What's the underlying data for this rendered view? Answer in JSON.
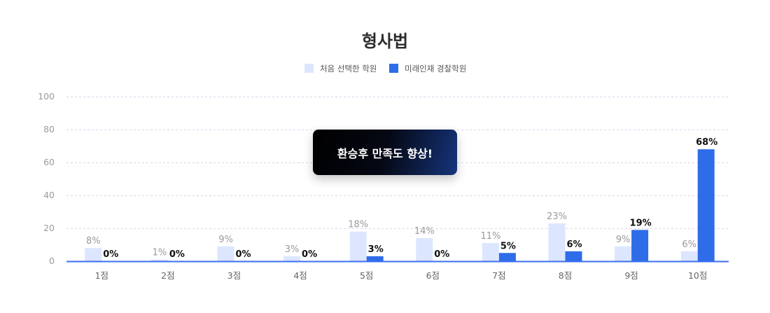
{
  "chart_data": {
    "type": "bar",
    "title": "형사법",
    "categories": [
      "1점",
      "2점",
      "3점",
      "4점",
      "5점",
      "6점",
      "7점",
      "8점",
      "9점",
      "10점"
    ],
    "series": [
      {
        "name": "처음 선택한 학원",
        "color": "#dce6ff",
        "values": [
          8,
          1,
          9,
          3,
          18,
          14,
          11,
          23,
          9,
          6
        ],
        "labels": [
          "8%",
          "1%",
          "9%",
          "3%",
          "18%",
          "14%",
          "11%",
          "23%",
          "9%",
          "6%"
        ]
      },
      {
        "name": "미래인재 경찰학원",
        "color": "#2f6de8",
        "values": [
          0,
          0,
          0,
          0,
          3,
          0,
          5,
          6,
          19,
          68
        ],
        "labels": [
          "0%",
          "0%",
          "0%",
          "0%",
          "3%",
          "0%",
          "5%",
          "6%",
          "19%",
          "68%"
        ]
      }
    ],
    "yticks": [
      "0",
      "20",
      "40",
      "60",
      "80",
      "100"
    ],
    "ylim": [
      0,
      100
    ],
    "grid": true,
    "legend_position": "top-center"
  },
  "callout": {
    "text": "환승후 만족도 향상!"
  },
  "colors": {
    "grid": "#d5d7ec",
    "baseline": "#3b6ef0"
  }
}
